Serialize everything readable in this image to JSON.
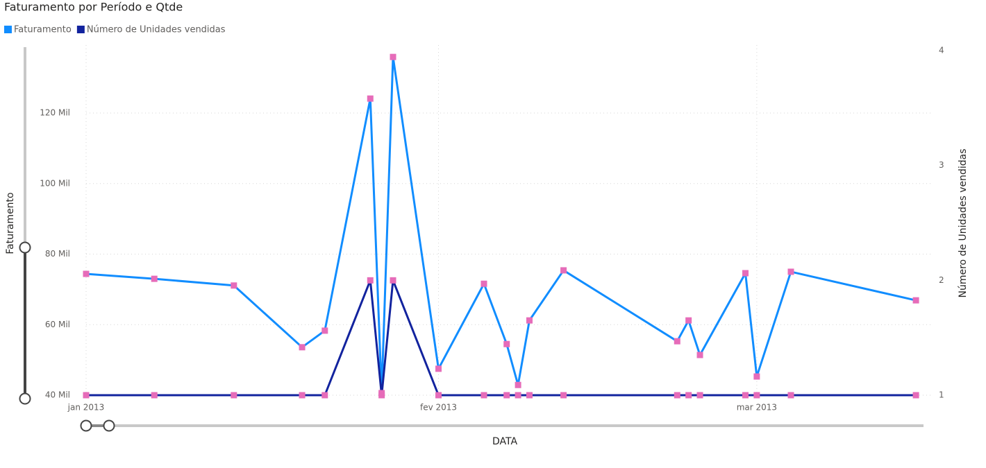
{
  "chart_data": {
    "type": "line",
    "title": "Faturamento por Período e Qtde",
    "x_label": "DATA",
    "y_label": "Faturamento",
    "y2_label": "Número de Unidades vendidas",
    "x": [
      0,
      6,
      13,
      19,
      21,
      25,
      26,
      27,
      31,
      35,
      37,
      38,
      39,
      42,
      52,
      53,
      54,
      58,
      59,
      62,
      73
    ],
    "xlim": [
      0,
      74.4
    ],
    "xticks": [
      {
        "value": 0,
        "label": "jan 2013"
      },
      {
        "value": 31,
        "label": "fev 2013"
      },
      {
        "value": 59,
        "label": "mar 2013"
      }
    ],
    "ylim": [
      40000,
      137700
    ],
    "yticks": [
      {
        "value": 40000,
        "label": "40 Mil"
      },
      {
        "value": 60000,
        "label": "60 Mil"
      },
      {
        "value": 80000,
        "label": "80 Mil"
      },
      {
        "value": 100000,
        "label": "100 Mil"
      },
      {
        "value": 120000,
        "label": "120 Mil"
      }
    ],
    "y2lim": [
      1,
      4
    ],
    "y2ticks": [
      1,
      2,
      3,
      4
    ],
    "grid": true,
    "marker_color": "#e66cb9",
    "series": [
      {
        "name": "Faturamento",
        "color": "#118dff",
        "values": [
          74400,
          73000,
          71100,
          53600,
          58300,
          124100,
          40600,
          135900,
          47500,
          71600,
          54500,
          42900,
          61200,
          75400,
          55300,
          61200,
          51400,
          74600,
          45300,
          75000,
          66900
        ]
      },
      {
        "name": "Número de Unidades vendidas",
        "color": "#12239e",
        "axis": "y2",
        "values": [
          1,
          1,
          1,
          1,
          1,
          2,
          1,
          2,
          1,
          1,
          1,
          1,
          1,
          1,
          1,
          1,
          1,
          1,
          1,
          1,
          1
        ]
      }
    ]
  }
}
